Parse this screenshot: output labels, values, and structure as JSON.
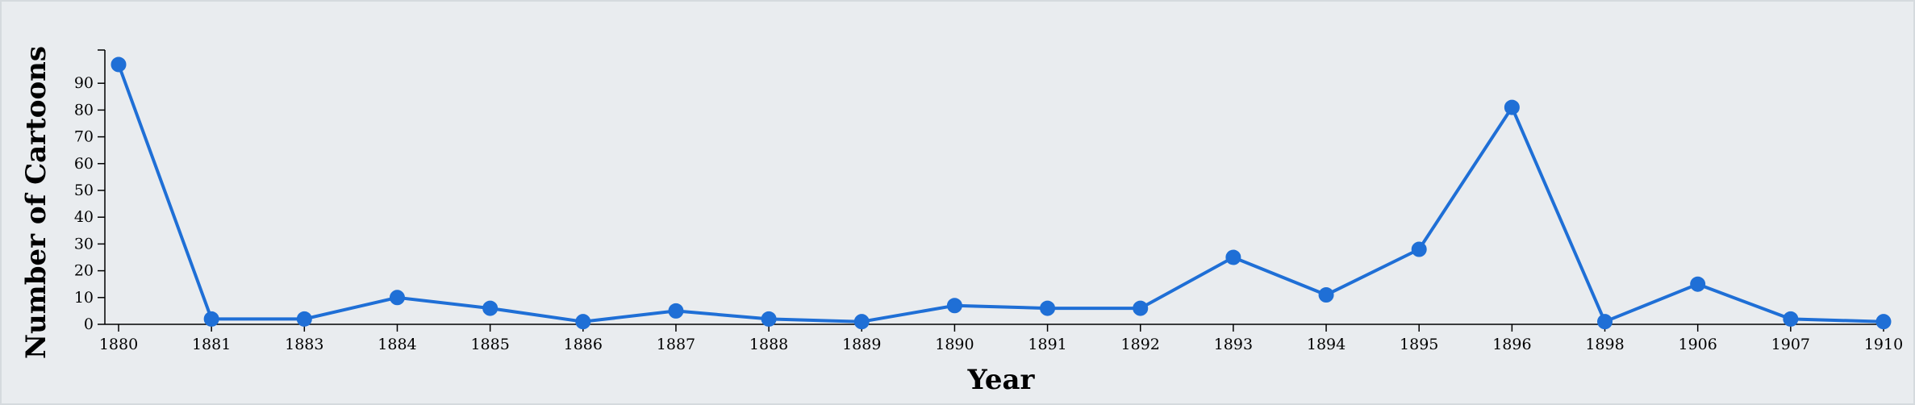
{
  "chart_data": {
    "type": "line",
    "xlabel": "Year",
    "ylabel": "Number of Cartoons",
    "ylim": [
      0,
      100
    ],
    "yticks": [
      0,
      10,
      20,
      30,
      40,
      50,
      60,
      70,
      80,
      90
    ],
    "categories": [
      "1880",
      "1881",
      "1883",
      "1884",
      "1885",
      "1886",
      "1887",
      "1888",
      "1889",
      "1890",
      "1891",
      "1892",
      "1893",
      "1894",
      "1895",
      "1896",
      "1898",
      "1906",
      "1907",
      "1910"
    ],
    "series": [
      {
        "values": [
          97,
          2,
          2,
          10,
          6,
          1,
          5,
          2,
          1,
          7,
          6,
          6,
          25,
          11,
          28,
          81,
          1,
          15,
          2,
          1
        ]
      }
    ],
    "grid": false,
    "colors": {
      "line": "#1f6fd6",
      "background": "#e9ecef"
    }
  }
}
